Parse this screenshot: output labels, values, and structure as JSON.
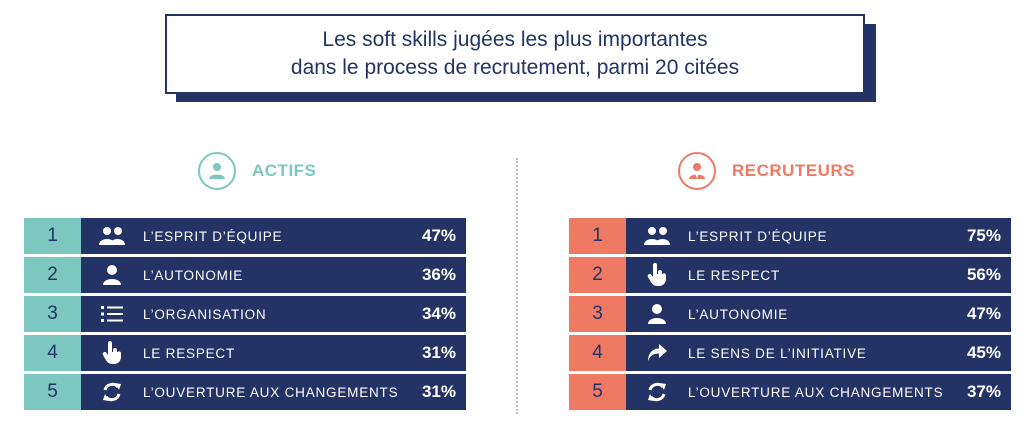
{
  "title": {
    "line1": "Les soft skills jugées les plus importantes",
    "line2": "dans le process de recrutement, parmi 20 citées"
  },
  "colors": {
    "navy": "#233365",
    "teal": "#7cc8c0",
    "coral": "#ef7a63"
  },
  "actifs": {
    "label": "ACTIFS",
    "icon": "person-circle-icon",
    "rows": [
      {
        "rank": "1",
        "icon": "group-icon",
        "label": "L’ESPRIT D’ÉQUIPE",
        "pct": "47%"
      },
      {
        "rank": "2",
        "icon": "person-icon",
        "label": "L’AUTONOMIE",
        "pct": "36%"
      },
      {
        "rank": "3",
        "icon": "list-icon",
        "label": "L’ORGANISATION",
        "pct": "34%"
      },
      {
        "rank": "4",
        "icon": "hand-pointer-icon",
        "label": "LE RESPECT",
        "pct": "31%"
      },
      {
        "rank": "5",
        "icon": "refresh-icon",
        "label": "L’OUVERTURE AUX CHANGEMENTS",
        "pct": "31%"
      }
    ]
  },
  "recruteurs": {
    "label": "RECRUTEURS",
    "icon": "recruiter-circle-icon",
    "rows": [
      {
        "rank": "1",
        "icon": "group-icon",
        "label": "L’ESPRIT D’ÉQUIPE",
        "pct": "75%"
      },
      {
        "rank": "2",
        "icon": "hand-pointer-icon",
        "label": "LE RESPECT",
        "pct": "56%"
      },
      {
        "rank": "3",
        "icon": "person-icon",
        "label": "L’AUTONOMIE",
        "pct": "47%"
      },
      {
        "rank": "4",
        "icon": "share-arrow-icon",
        "label": "LE SENS DE L’INITIATIVE",
        "pct": "45%"
      },
      {
        "rank": "5",
        "icon": "refresh-icon",
        "label": "L’OUVERTURE AUX CHANGEMENTS",
        "pct": "37%"
      }
    ]
  }
}
